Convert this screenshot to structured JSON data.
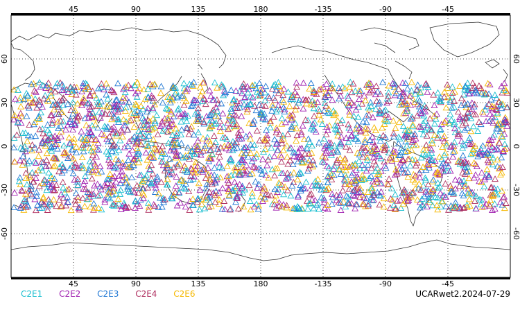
{
  "map": {
    "projection": "cylindrical-equidistant",
    "center_longitude": 180,
    "lon_range": [
      0,
      360
    ],
    "lat_range": [
      -90,
      90
    ],
    "top_lon_ticks": [
      "45",
      "90",
      "135",
      "180",
      "-135",
      "-90",
      "-45"
    ],
    "bottom_lon_ticks": [
      "45",
      "90",
      "135",
      "180",
      "-135",
      "-90",
      "-45"
    ],
    "lat_ticks_left": [
      "60",
      "30",
      "0",
      "-30",
      "-60"
    ],
    "lat_ticks_right": [
      "60",
      "30",
      "0",
      "-30",
      "-60"
    ],
    "marker": "open-triangle",
    "grid": "dotted"
  },
  "legend": {
    "items": [
      {
        "label": "C2E1",
        "color": "#17becf"
      },
      {
        "label": "C2E2",
        "color": "#a020b0"
      },
      {
        "label": "C2E3",
        "color": "#1f77d4"
      },
      {
        "label": "C2E4",
        "color": "#b03060"
      },
      {
        "label": "C2E6",
        "color": "#f5b800"
      }
    ]
  },
  "footer": {
    "label": "UCARwet2.2024-07-29"
  }
}
